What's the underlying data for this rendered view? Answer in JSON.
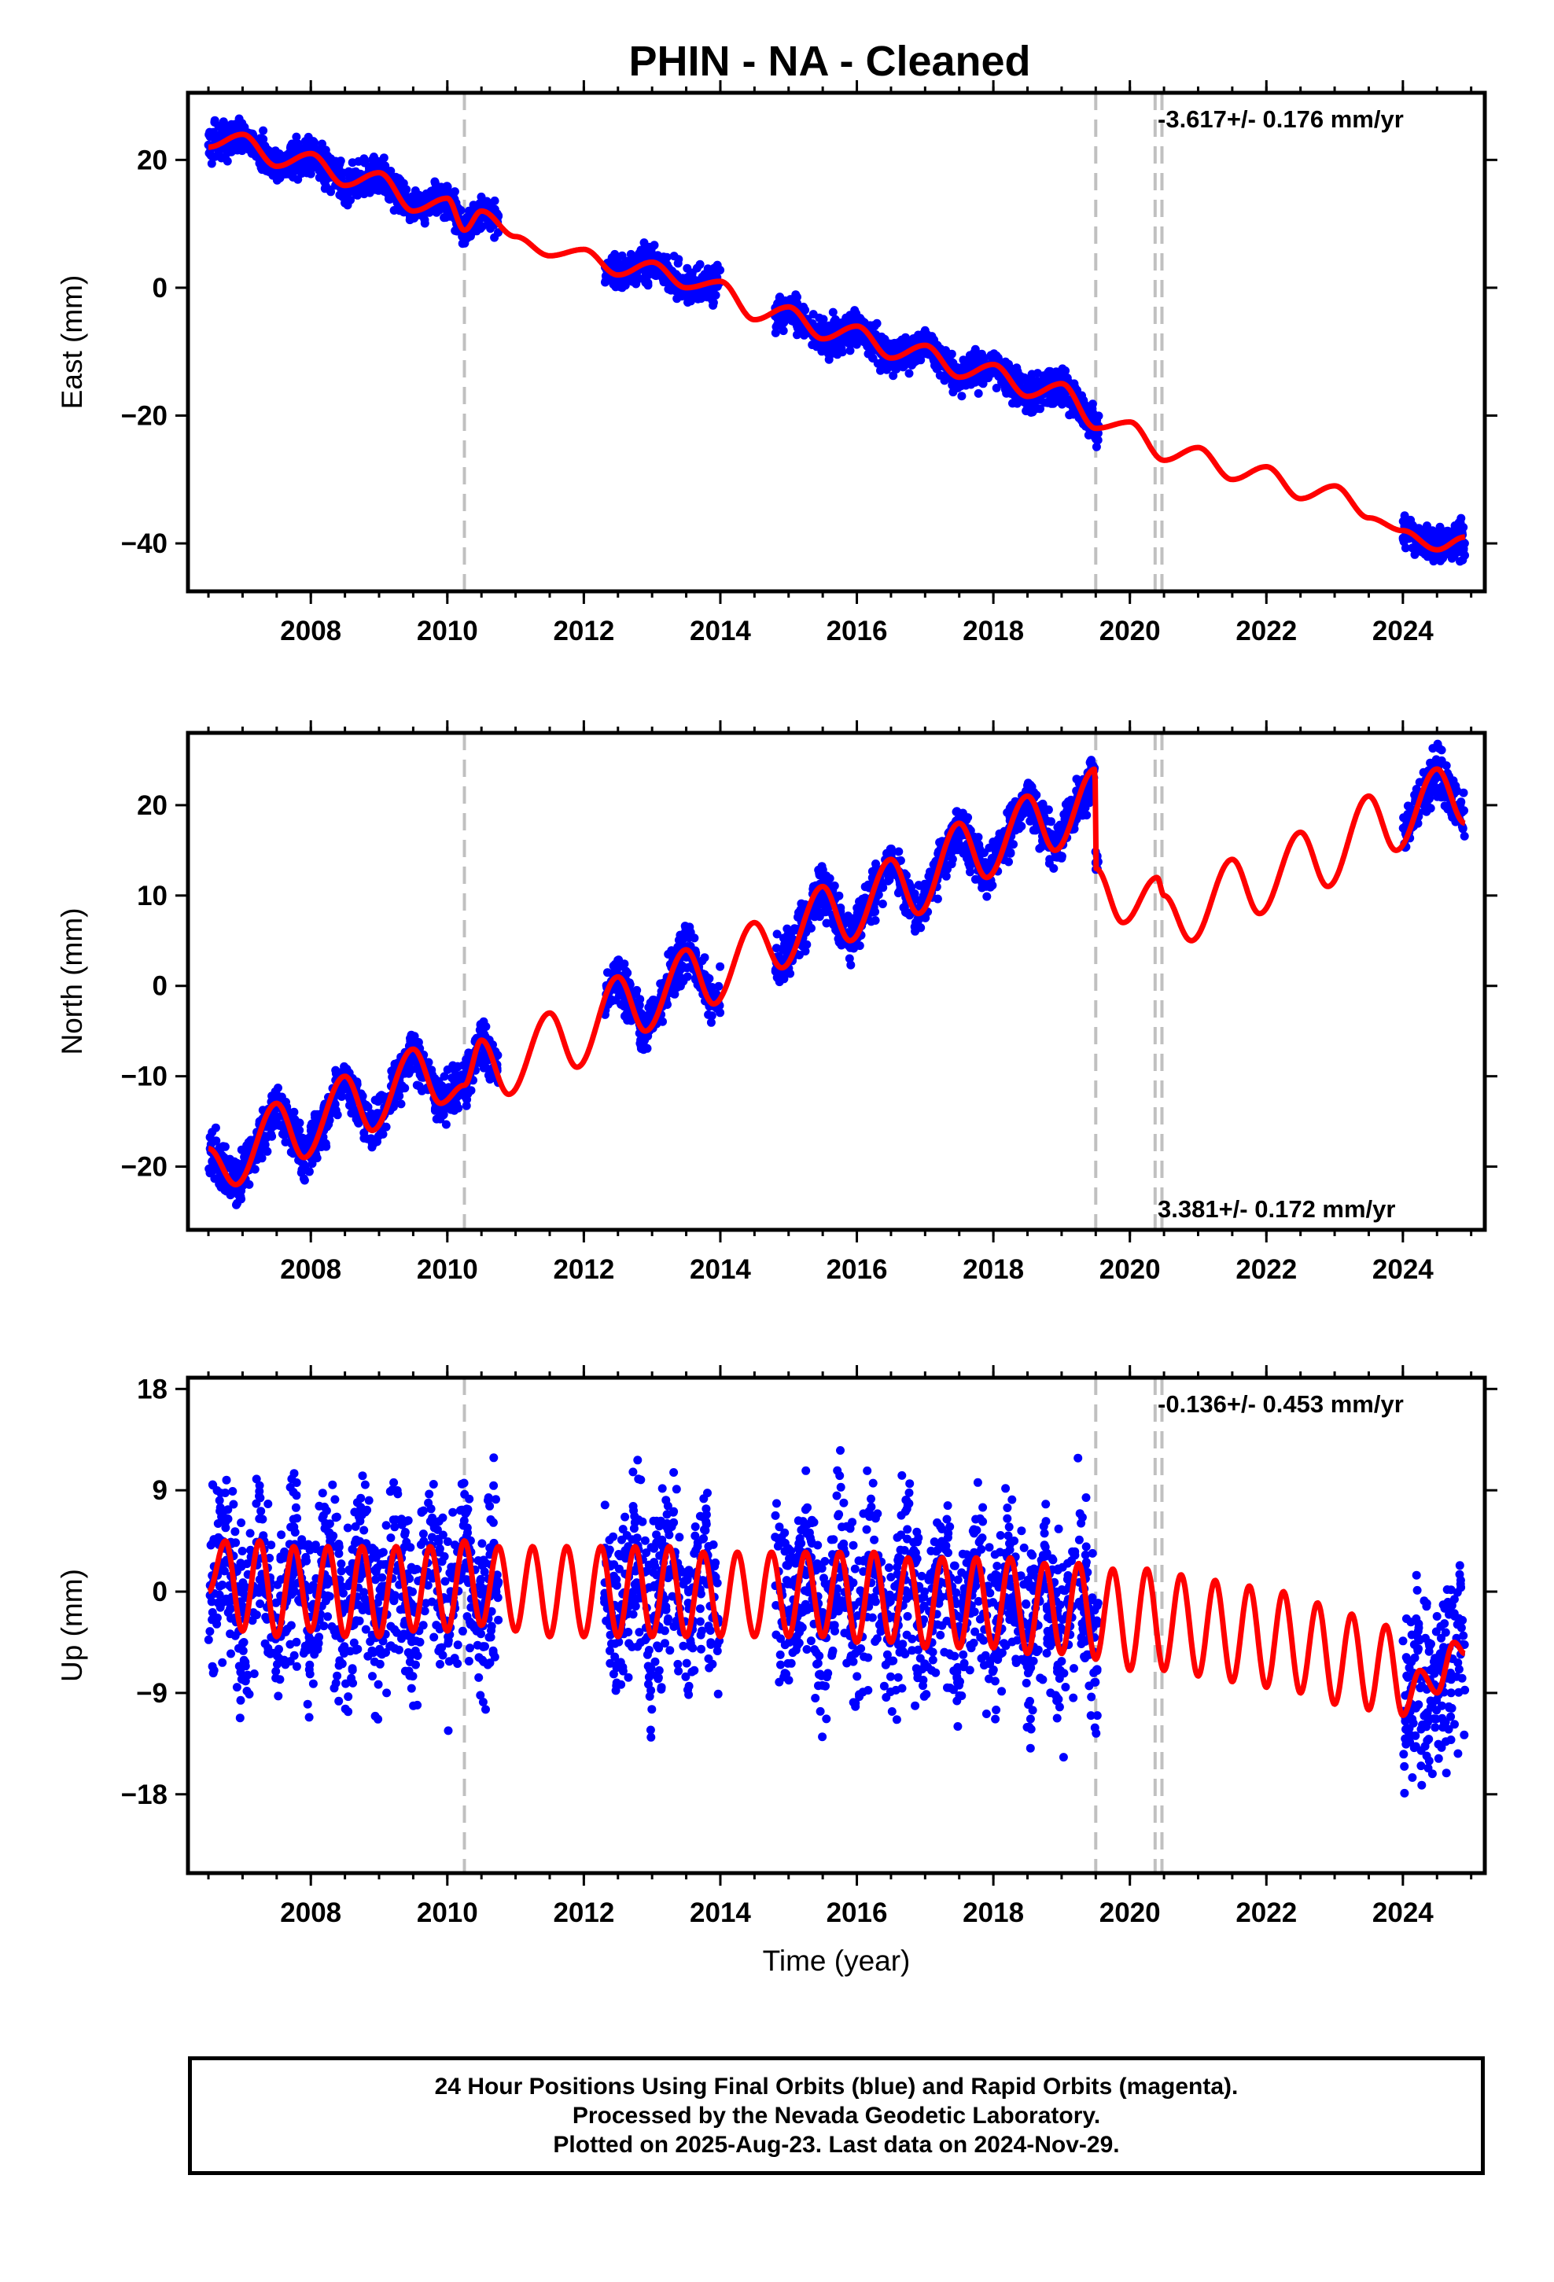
{
  "title": "PHIN  - NA - Cleaned",
  "footer": {
    "line1": "24 Hour Positions Using Final Orbits (blue) and Rapid Orbits (magenta).",
    "line2": "Processed by the Nevada Geodetic Laboratory.",
    "line3": "Plotted on 2025-Aug-23. Last data on 2024-Nov-29."
  },
  "colors": {
    "final_orbits": "#0000ff",
    "model": "#ff0000",
    "break_lines": "#c0c0c0"
  },
  "chart_data": [
    {
      "type": "scatter",
      "ylabel": "East (mm)",
      "xlim": [
        2006.2,
        2025.2
      ],
      "ylim": [
        -47.5,
        30.5
      ],
      "yticks": [
        20,
        0,
        -20,
        -40
      ],
      "xticks": [
        2008,
        2010,
        2012,
        2014,
        2016,
        2018,
        2020,
        2022,
        2024
      ],
      "annotation": "-3.617+/- 0.176 mm/yr",
      "annotation_position": "top-right",
      "breaks": [
        2010.25,
        2019.5,
        2020.37,
        2020.47
      ],
      "data_segments": [
        [
          2006.5,
          2010.75
        ],
        [
          2012.3,
          2014.0
        ],
        [
          2014.8,
          2019.55
        ],
        [
          2024.0,
          2024.91
        ]
      ],
      "model": {
        "name": "",
        "x": [
          2006.5,
          2007.0,
          2007.5,
          2008.0,
          2008.5,
          2009.0,
          2009.5,
          2010.0,
          2010.25,
          2010.5,
          2011.0,
          2011.5,
          2012.0,
          2012.5,
          2013.0,
          2013.5,
          2014.0,
          2014.5,
          2015.0,
          2015.5,
          2016.0,
          2016.5,
          2017.0,
          2017.5,
          2018.0,
          2018.5,
          2019.0,
          2019.5,
          2020.0,
          2020.5,
          2021.0,
          2021.5,
          2022.0,
          2022.5,
          2023.0,
          2023.5,
          2024.0,
          2024.5,
          2024.91
        ],
        "y": [
          22,
          24,
          19,
          21,
          16,
          18,
          12,
          14,
          9,
          12,
          8,
          5,
          6,
          2,
          4,
          0,
          1,
          -5,
          -3,
          -8,
          -6,
          -11,
          -9,
          -14,
          -12,
          -17,
          -15,
          -22,
          -21,
          -27,
          -25,
          -30,
          -28,
          -33,
          -31,
          -36,
          -38,
          -41,
          -39
        ]
      }
    },
    {
      "type": "scatter",
      "ylabel": "North (mm)",
      "xlim": [
        2006.2,
        2025.2
      ],
      "ylim": [
        -27,
        28
      ],
      "yticks": [
        20,
        10,
        0,
        -10,
        -20
      ],
      "xticks": [
        2008,
        2010,
        2012,
        2014,
        2016,
        2018,
        2020,
        2022,
        2024
      ],
      "annotation": "3.381+/- 0.172 mm/yr",
      "annotation_position": "bottom-right",
      "breaks": [
        2010.25,
        2019.5,
        2020.37,
        2020.47
      ],
      "data_segments": [
        [
          2006.5,
          2010.75
        ],
        [
          2012.3,
          2014.0
        ],
        [
          2014.8,
          2019.55
        ],
        [
          2024.0,
          2024.91
        ]
      ],
      "model": {
        "name": "",
        "x": [
          2006.5,
          2006.9,
          2007.5,
          2007.9,
          2008.5,
          2008.9,
          2009.5,
          2009.9,
          2010.25,
          2010.5,
          2010.9,
          2011.5,
          2011.9,
          2012.5,
          2012.9,
          2013.5,
          2013.9,
          2014.5,
          2014.9,
          2015.5,
          2015.9,
          2016.5,
          2016.9,
          2017.5,
          2017.9,
          2018.5,
          2018.9,
          2019.49,
          2019.5,
          2019.9,
          2020.4,
          2020.5,
          2020.9,
          2021.5,
          2021.9,
          2022.5,
          2022.9,
          2023.5,
          2023.9,
          2024.5,
          2024.91
        ],
        "y": [
          -18,
          -22,
          -13,
          -19,
          -10,
          -16,
          -7,
          -13,
          -11,
          -6,
          -12,
          -3,
          -9,
          1,
          -5,
          4,
          -2,
          7,
          2,
          11,
          5,
          14,
          8,
          18,
          12,
          21,
          15,
          24,
          13,
          7,
          12,
          10,
          5,
          14,
          8,
          17,
          11,
          21,
          15,
          24,
          18
        ]
      }
    },
    {
      "type": "scatter",
      "ylabel": "Up (mm)",
      "xlabel": "Time (year)",
      "xlim": [
        2006.2,
        2025.2
      ],
      "ylim": [
        -25,
        19
      ],
      "yticks": [
        18,
        9,
        0,
        -9,
        -18
      ],
      "xticks": [
        2008,
        2010,
        2012,
        2014,
        2016,
        2018,
        2020,
        2022,
        2024
      ],
      "annotation": "-0.136+/- 0.453 mm/yr",
      "annotation_position": "top-right",
      "breaks": [
        2010.25,
        2019.5,
        2020.37,
        2020.47
      ],
      "data_segments": [
        [
          2006.5,
          2010.75
        ],
        [
          2012.3,
          2014.0
        ],
        [
          2014.8,
          2019.55
        ],
        [
          2024.0,
          2024.91
        ]
      ],
      "model": {
        "name": "",
        "x": [
          2006.5,
          2006.75,
          2007.0,
          2007.25,
          2007.5,
          2007.75,
          2008.0,
          2008.25,
          2008.5,
          2008.75,
          2009.0,
          2009.25,
          2009.5,
          2009.75,
          2010.0,
          2010.25,
          2010.5,
          2010.75,
          2011.0,
          2011.25,
          2011.5,
          2011.75,
          2012.0,
          2012.25,
          2012.5,
          2012.75,
          2013.0,
          2013.25,
          2013.5,
          2013.75,
          2014.0,
          2014.25,
          2014.5,
          2014.75,
          2015.0,
          2015.25,
          2015.5,
          2015.75,
          2016.0,
          2016.25,
          2016.5,
          2016.75,
          2017.0,
          2017.25,
          2017.5,
          2017.75,
          2018.0,
          2018.25,
          2018.5,
          2018.75,
          2019.0,
          2019.25,
          2019.5,
          2019.75,
          2020.0,
          2020.25,
          2020.5,
          2020.75,
          2021.0,
          2021.25,
          2021.5,
          2021.75,
          2022.0,
          2022.25,
          2022.5,
          2022.75,
          2023.0,
          2023.25,
          2023.5,
          2023.75,
          2024.0,
          2024.25,
          2024.5,
          2024.75,
          2024.91
        ],
        "y": [
          0,
          4.5,
          -3.5,
          4.5,
          -4,
          4,
          -3.5,
          4,
          -4,
          4,
          -4,
          4,
          -3.5,
          4,
          -3.5,
          4.5,
          -3,
          4,
          -3.5,
          4,
          -4,
          4,
          -4,
          4,
          -4,
          4,
          -4,
          4,
          -4,
          3.5,
          -4,
          3.5,
          -4,
          3.5,
          -4,
          3.5,
          -4,
          3.5,
          -4.5,
          3.5,
          -4.5,
          3,
          -5,
          3,
          -5,
          3,
          -5,
          3,
          -5.5,
          2.5,
          -5.5,
          2.5,
          -6,
          2,
          -7,
          2,
          -7,
          1.5,
          -7.5,
          1,
          -8,
          0.5,
          -8.5,
          0,
          -9,
          -1,
          -10,
          -2,
          -10.5,
          -3,
          -11,
          -7,
          -9,
          -4.5,
          -5.5
        ]
      }
    }
  ]
}
